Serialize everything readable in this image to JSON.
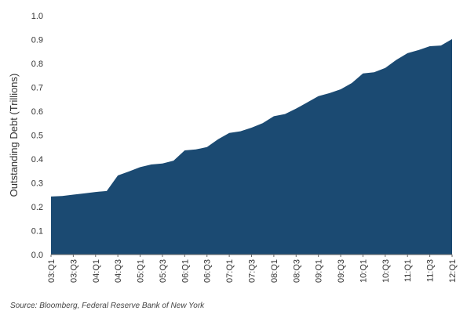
{
  "chart_data": {
    "type": "area",
    "title": "",
    "xlabel": "",
    "ylabel": "Outstanding Debt (Trillions)",
    "ylim": [
      0,
      1.0
    ],
    "yticks": [
      "0.0",
      "0.1",
      "0.2",
      "0.3",
      "0.4",
      "0.5",
      "0.6",
      "0.7",
      "0.8",
      "0.9",
      "1.0"
    ],
    "xtick_labels": [
      "03:Q1",
      "03:Q3",
      "04:Q1",
      "04:Q3",
      "05:Q1",
      "05:Q3",
      "06:Q1",
      "06:Q3",
      "07:Q1",
      "07:Q3",
      "08:Q1",
      "08:Q3",
      "09:Q1",
      "09:Q3",
      "10:Q1",
      "10:Q3",
      "11:Q1",
      "11:Q3",
      "12:Q1"
    ],
    "categories": [
      "03:Q1",
      "03:Q2",
      "03:Q3",
      "03:Q4",
      "04:Q1",
      "04:Q2",
      "04:Q3",
      "04:Q4",
      "05:Q1",
      "05:Q2",
      "05:Q3",
      "05:Q4",
      "06:Q1",
      "06:Q2",
      "06:Q3",
      "06:Q4",
      "07:Q1",
      "07:Q2",
      "07:Q3",
      "07:Q4",
      "08:Q1",
      "08:Q2",
      "08:Q3",
      "08:Q4",
      "09:Q1",
      "09:Q2",
      "09:Q3",
      "09:Q4",
      "10:Q1",
      "10:Q2",
      "10:Q3",
      "10:Q4",
      "11:Q1",
      "11:Q2",
      "11:Q3",
      "11:Q4",
      "12:Q1"
    ],
    "values": [
      0.243,
      0.245,
      0.251,
      0.256,
      0.262,
      0.266,
      0.331,
      0.348,
      0.366,
      0.377,
      0.381,
      0.393,
      0.436,
      0.44,
      0.45,
      0.483,
      0.509,
      0.516,
      0.531,
      0.55,
      0.579,
      0.588,
      0.611,
      0.637,
      0.663,
      0.676,
      0.692,
      0.718,
      0.758,
      0.763,
      0.781,
      0.815,
      0.843,
      0.856,
      0.872,
      0.875,
      0.902
    ],
    "grid": false,
    "legend": "none",
    "colors": {
      "area": "#1b4a72",
      "axis": "#666666",
      "text": "#333333"
    }
  },
  "source_note": "Source: Bloomberg, Federal Reserve Bank of New York"
}
